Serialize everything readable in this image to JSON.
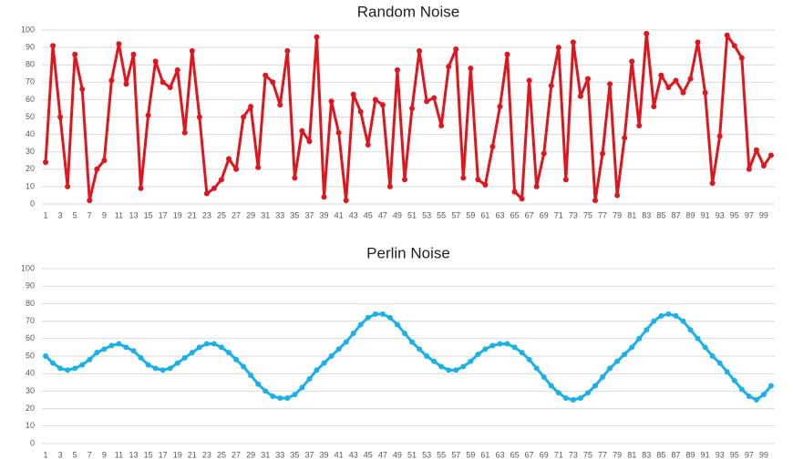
{
  "chart_data": [
    {
      "type": "line",
      "title": "Random Noise",
      "categories": [
        1,
        null,
        3,
        null,
        5,
        null,
        7,
        null,
        9,
        null,
        11,
        null,
        13,
        null,
        15,
        null,
        17,
        null,
        19,
        null,
        21,
        null,
        23,
        null,
        25,
        null,
        27,
        null,
        29,
        null,
        31,
        null,
        33,
        null,
        35,
        null,
        37,
        null,
        39,
        null,
        41,
        null,
        43,
        null,
        45,
        null,
        47,
        null,
        49,
        null,
        51,
        null,
        53,
        null,
        55,
        null,
        57,
        null,
        59,
        null,
        61,
        null,
        63,
        null,
        65,
        null,
        67,
        null,
        69,
        null,
        71,
        null,
        73,
        null,
        75,
        null,
        77,
        null,
        79,
        null,
        81,
        null,
        83,
        null,
        85,
        null,
        87,
        null,
        89,
        null,
        91,
        null,
        93,
        null,
        95,
        null,
        97,
        null,
        99,
        null
      ],
      "values": [
        24,
        91,
        50,
        10,
        86,
        66,
        2,
        20,
        25,
        71,
        92,
        69,
        86,
        9,
        51,
        82,
        70,
        67,
        77,
        41,
        88,
        50,
        6,
        9,
        14,
        26,
        20,
        50,
        56,
        21,
        74,
        70,
        57,
        88,
        15,
        42,
        36,
        96,
        4,
        59,
        41,
        2,
        63,
        53,
        34,
        60,
        57,
        10,
        77,
        14,
        55,
        88,
        59,
        61,
        45,
        79,
        89,
        15,
        78,
        14,
        11,
        33,
        56,
        86,
        7,
        3,
        71,
        10,
        29,
        68,
        90,
        14,
        93,
        62,
        72,
        2,
        29,
        69,
        5,
        38,
        82,
        45,
        98,
        56,
        74,
        67,
        71,
        64,
        72,
        93,
        64,
        12,
        39,
        97,
        91,
        84,
        20,
        31,
        22,
        28
      ],
      "color": "#e0161e",
      "ylim": [
        0,
        100
      ],
      "yticks": [
        0,
        10,
        20,
        30,
        40,
        50,
        60,
        70,
        80,
        90,
        100
      ],
      "grid": true
    },
    {
      "type": "line",
      "title": "Perlin Noise",
      "categories": [
        1,
        null,
        3,
        null,
        5,
        null,
        7,
        null,
        9,
        null,
        11,
        null,
        13,
        null,
        15,
        null,
        17,
        null,
        19,
        null,
        21,
        null,
        23,
        null,
        25,
        null,
        27,
        null,
        29,
        null,
        31,
        null,
        33,
        null,
        35,
        null,
        37,
        null,
        39,
        null,
        41,
        null,
        43,
        null,
        45,
        null,
        47,
        null,
        49,
        null,
        51,
        null,
        53,
        null,
        55,
        null,
        57,
        null,
        59,
        null,
        61,
        null,
        63,
        null,
        65,
        null,
        67,
        null,
        69,
        null,
        71,
        null,
        73,
        null,
        75,
        null,
        77,
        null,
        79,
        null,
        81,
        null,
        83,
        null,
        85,
        null,
        87,
        null,
        89,
        null,
        91,
        null,
        93,
        null,
        95,
        null,
        97,
        null,
        99,
        null
      ],
      "values": [
        50,
        46,
        43,
        42,
        43,
        45,
        48,
        52,
        54,
        56,
        57,
        55,
        53,
        49,
        45,
        43,
        42,
        43,
        46,
        49,
        52,
        55,
        57,
        57,
        55,
        52,
        48,
        44,
        39,
        34,
        30,
        27,
        26,
        26,
        28,
        32,
        37,
        42,
        46,
        50,
        54,
        58,
        63,
        68,
        72,
        74,
        74,
        72,
        68,
        63,
        58,
        54,
        50,
        47,
        44,
        42,
        42,
        44,
        47,
        51,
        54,
        56,
        57,
        57,
        55,
        52,
        48,
        43,
        38,
        33,
        29,
        26,
        25,
        26,
        29,
        33,
        38,
        43,
        47,
        51,
        55,
        60,
        65,
        70,
        73,
        74,
        73,
        70,
        65,
        60,
        55,
        50,
        46,
        41,
        36,
        31,
        27,
        25,
        28,
        33
      ],
      "color": "#1ab0e8",
      "ylim": [
        0,
        100
      ],
      "yticks": [
        0,
        10,
        20,
        30,
        40,
        50,
        60,
        70,
        80,
        90,
        100
      ],
      "grid": true
    }
  ]
}
